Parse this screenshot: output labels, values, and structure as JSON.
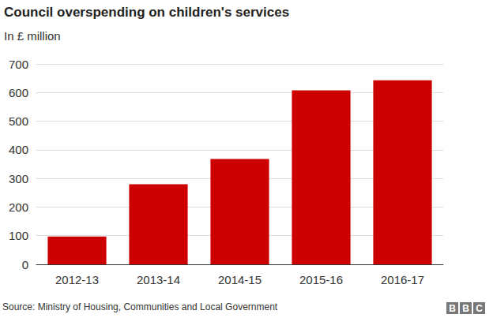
{
  "chart_data": {
    "type": "bar",
    "title": "Council overspending on children's services",
    "subtitle": "In £ million",
    "categories": [
      "2012-13",
      "2013-14",
      "2014-15",
      "2015-16",
      "2016-17"
    ],
    "values": [
      97,
      280,
      368,
      608,
      643
    ],
    "color": "#cc0000",
    "ylim": [
      0,
      700
    ],
    "yticks": [
      0,
      100,
      200,
      300,
      400,
      500,
      600,
      700
    ],
    "grid": true,
    "source": "Source: Ministry of Housing, Communities and Local Government",
    "credit": "BBC"
  }
}
